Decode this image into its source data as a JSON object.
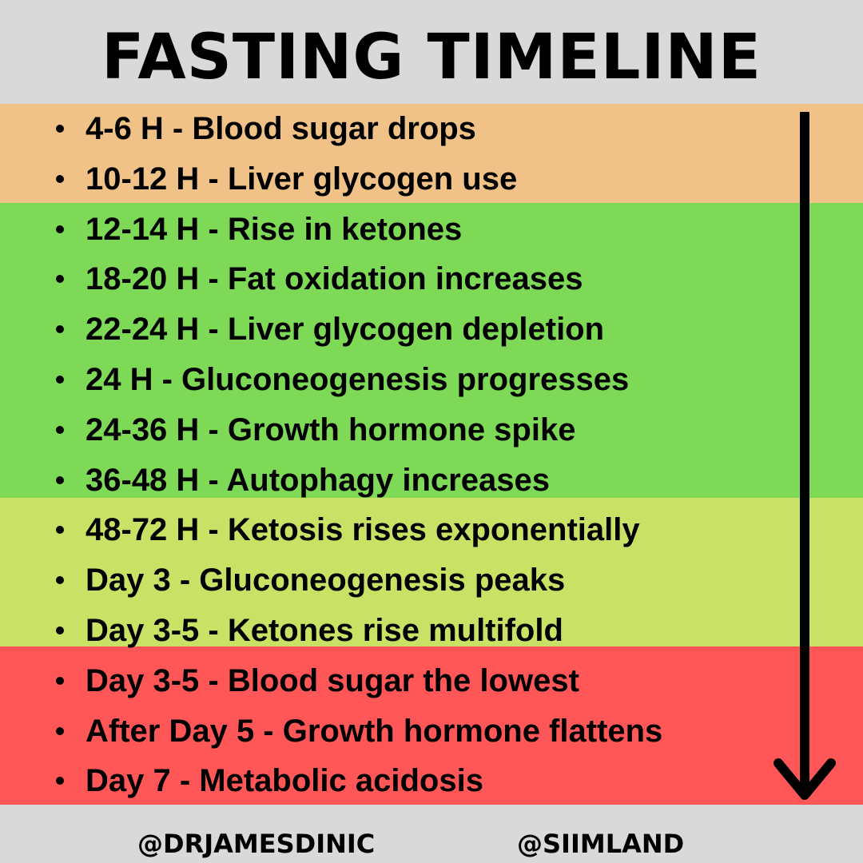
{
  "title": "FASTING TIMELINE",
  "items": [
    {
      "text": "4-6 H - Blood sugar drops"
    },
    {
      "text": "10-12 H - Liver glycogen use"
    },
    {
      "text": "12-14 H - Rise in ketones"
    },
    {
      "text": "18-20 H - Fat oxidation increases"
    },
    {
      "text": "22-24 H - Liver glycogen depletion"
    },
    {
      "text": "24 H - Gluconeogenesis progresses"
    },
    {
      "text": "24-36 H - Growth hormone spike"
    },
    {
      "text": "36-48 H - Autophagy increases"
    },
    {
      "text": "48-72 H - Ketosis rises exponentially"
    },
    {
      "text": "Day 3 - Gluconeogenesis peaks"
    },
    {
      "text": "Day 3-5 - Ketones rise multifold"
    },
    {
      "text": "Day 3-5 - Blood sugar the lowest"
    },
    {
      "text": "After Day 5 - Growth hormone flattens"
    },
    {
      "text": "Day 7  - Metabolic acidosis"
    }
  ],
  "colors": {
    "band_1": "#f1c287",
    "band_2": "#7ed957",
    "band_3": "#c9e265",
    "band_4": "#ff5757",
    "background": "#d9d9d9"
  },
  "icons": {
    "timeline_arrow": "arrow-down-icon"
  },
  "footer": {
    "handle_1": "@DRJAMESDINIC",
    "handle_2": "@SIIMLAND"
  }
}
